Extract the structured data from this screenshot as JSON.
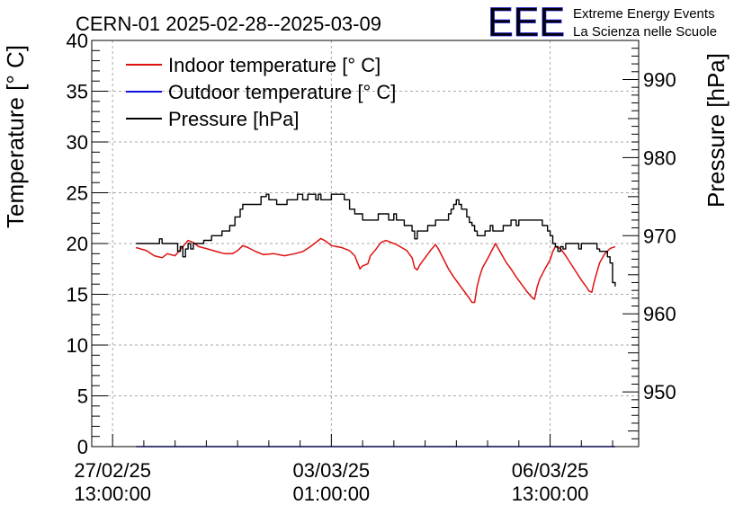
{
  "chart_data": {
    "type": "line",
    "title": "CERN-01 2025-02-28--2025-03-09",
    "branding": {
      "logo_text": "EEE",
      "line1": "Extreme Energy Events",
      "line2": "La Scienza nelle Scuole",
      "color": "#1f1fe6"
    },
    "ylabel_left": "Temperature [° C]",
    "ylabel_right": "Pressure [hPa]",
    "ylim_left": [
      0,
      40
    ],
    "ylim_right": [
      943,
      995
    ],
    "xlim_hours": [
      -8,
      202
    ],
    "left_ticks": [
      "0",
      "5",
      "10",
      "15",
      "20",
      "25",
      "30",
      "35",
      "40"
    ],
    "right_ticks": [
      "950",
      "960",
      "970",
      "980",
      "990"
    ],
    "x_ticks": [
      {
        "hour": 0,
        "date": "27/02/25",
        "time": "13:00:00"
      },
      {
        "hour": 84,
        "date": "03/03/25",
        "time": "01:00:00"
      },
      {
        "hour": 168,
        "date": "06/03/25",
        "time": "13:00:00"
      }
    ],
    "grid": true,
    "legend_position": "top-left",
    "series": [
      {
        "name": "Indoor temperature [° C]",
        "axis": "left",
        "color": "#e01010",
        "points": [
          [
            9,
            19.6
          ],
          [
            13,
            19.3
          ],
          [
            16,
            18.8
          ],
          [
            19,
            18.6
          ],
          [
            21,
            19.0
          ],
          [
            24,
            18.8
          ],
          [
            26,
            19.4
          ],
          [
            29,
            20.3
          ],
          [
            31,
            20.1
          ],
          [
            33,
            19.7
          ],
          [
            36,
            19.5
          ],
          [
            40,
            19.2
          ],
          [
            43,
            19.0
          ],
          [
            46,
            19.0
          ],
          [
            48,
            19.3
          ],
          [
            50,
            19.8
          ],
          [
            52,
            19.6
          ],
          [
            55,
            19.2
          ],
          [
            58,
            18.9
          ],
          [
            62,
            19.0
          ],
          [
            66,
            18.8
          ],
          [
            70,
            19.0
          ],
          [
            73,
            19.2
          ],
          [
            76,
            19.7
          ],
          [
            78,
            20.1
          ],
          [
            80,
            20.5
          ],
          [
            82,
            20.2
          ],
          [
            84,
            19.8
          ],
          [
            86,
            19.7
          ],
          [
            88,
            19.6
          ],
          [
            91,
            19.3
          ],
          [
            93,
            18.8
          ],
          [
            95,
            17.5
          ],
          [
            96,
            17.8
          ],
          [
            98,
            18.0
          ],
          [
            99,
            18.8
          ],
          [
            101,
            19.4
          ],
          [
            103,
            20.1
          ],
          [
            105,
            20.3
          ],
          [
            107,
            20.1
          ],
          [
            109,
            19.9
          ],
          [
            111,
            19.6
          ],
          [
            113,
            19.3
          ],
          [
            115,
            18.6
          ],
          [
            116,
            17.6
          ],
          [
            117,
            17.4
          ],
          [
            118,
            17.9
          ],
          [
            120,
            18.6
          ],
          [
            122,
            19.3
          ],
          [
            124,
            19.9
          ],
          [
            125,
            19.5
          ],
          [
            127,
            18.5
          ],
          [
            129,
            17.5
          ],
          [
            131,
            16.7
          ],
          [
            133,
            16.0
          ],
          [
            135,
            15.3
          ],
          [
            137,
            14.6
          ],
          [
            138,
            14.2
          ],
          [
            139,
            14.2
          ],
          [
            140,
            15.8
          ],
          [
            141,
            16.8
          ],
          [
            142,
            17.6
          ],
          [
            144,
            18.5
          ],
          [
            146,
            19.5
          ],
          [
            147,
            20.0
          ],
          [
            149,
            19.1
          ],
          [
            151,
            18.2
          ],
          [
            153,
            17.5
          ],
          [
            155,
            16.7
          ],
          [
            157,
            16.0
          ],
          [
            159,
            15.3
          ],
          [
            161,
            14.7
          ],
          [
            162,
            14.5
          ],
          [
            163,
            15.7
          ],
          [
            164,
            16.5
          ],
          [
            166,
            17.5
          ],
          [
            168,
            18.4
          ],
          [
            169,
            19.2
          ],
          [
            170,
            19.7
          ],
          [
            171,
            19.6
          ],
          [
            172,
            19.5
          ],
          [
            174,
            18.8
          ],
          [
            176,
            18.0
          ],
          [
            178,
            17.2
          ],
          [
            180,
            16.4
          ],
          [
            182,
            15.7
          ],
          [
            183,
            15.3
          ],
          [
            184,
            15.2
          ],
          [
            185,
            16.3
          ],
          [
            186,
            17.2
          ],
          [
            187,
            18.1
          ],
          [
            189,
            19.0
          ],
          [
            191,
            19.5
          ],
          [
            193,
            19.7
          ]
        ]
      },
      {
        "name": "Outdoor temperature [° C]",
        "axis": "left",
        "color": "#1010e0",
        "points": [
          [
            9,
            0.0
          ],
          [
            193,
            0.0
          ]
        ]
      },
      {
        "name": "Pressure [hPa]",
        "axis": "right",
        "color": "#000000",
        "points": [
          [
            9,
            969
          ],
          [
            17,
            969
          ],
          [
            18,
            969.6
          ],
          [
            19,
            969
          ],
          [
            24,
            969
          ],
          [
            25,
            968
          ],
          [
            26,
            968.6
          ],
          [
            27,
            967.3
          ],
          [
            28,
            968.3
          ],
          [
            29,
            969
          ],
          [
            30,
            968.3
          ],
          [
            31,
            969
          ],
          [
            33,
            969
          ],
          [
            35,
            969.4
          ],
          [
            38,
            970
          ],
          [
            41,
            970
          ],
          [
            42,
            970.6
          ],
          [
            44,
            970.6
          ],
          [
            45,
            971.3
          ],
          [
            47,
            972.4
          ],
          [
            49,
            973.4
          ],
          [
            50,
            974
          ],
          [
            52,
            974
          ],
          [
            56,
            974
          ],
          [
            57,
            975
          ],
          [
            59,
            975.3
          ],
          [
            60,
            974.6
          ],
          [
            62,
            974.6
          ],
          [
            63,
            974
          ],
          [
            66,
            974
          ],
          [
            67,
            974.6
          ],
          [
            70,
            974.6
          ],
          [
            71,
            975.3
          ],
          [
            73,
            974.6
          ],
          [
            75,
            975.3
          ],
          [
            77,
            975.3
          ],
          [
            78,
            974.6
          ],
          [
            79,
            975.3
          ],
          [
            80,
            974.6
          ],
          [
            83,
            974.6
          ],
          [
            84,
            975.3
          ],
          [
            88,
            975.3
          ],
          [
            89,
            974.6
          ],
          [
            91,
            973.4
          ],
          [
            93,
            972.8
          ],
          [
            95,
            972.8
          ],
          [
            96,
            972
          ],
          [
            101,
            972
          ],
          [
            102,
            972.8
          ],
          [
            104,
            972.8
          ],
          [
            106,
            972
          ],
          [
            108,
            972.8
          ],
          [
            109,
            972
          ],
          [
            111,
            972
          ],
          [
            112,
            971.3
          ],
          [
            114,
            971.3
          ],
          [
            115,
            970.6
          ],
          [
            116,
            969.6
          ],
          [
            117,
            970.6
          ],
          [
            120,
            970.6
          ],
          [
            121,
            971.3
          ],
          [
            123,
            971.3
          ],
          [
            124,
            972
          ],
          [
            128,
            972
          ],
          [
            129,
            972.8
          ],
          [
            130,
            973.4
          ],
          [
            131,
            974
          ],
          [
            132,
            974.6
          ],
          [
            133,
            974
          ],
          [
            134,
            973.4
          ],
          [
            136,
            972.4
          ],
          [
            137,
            971.7
          ],
          [
            138,
            971.3
          ],
          [
            139,
            970.6
          ],
          [
            140,
            970
          ],
          [
            141,
            970
          ],
          [
            143,
            970.6
          ],
          [
            145,
            971.3
          ],
          [
            146,
            970.6
          ],
          [
            149,
            970.6
          ],
          [
            150,
            971.3
          ],
          [
            152,
            971.3
          ],
          [
            153,
            972
          ],
          [
            155,
            971.3
          ],
          [
            156,
            972
          ],
          [
            164,
            972
          ],
          [
            165,
            971.3
          ],
          [
            167,
            970.6
          ],
          [
            168,
            970
          ],
          [
            169,
            969
          ],
          [
            170,
            968.6
          ],
          [
            171,
            968
          ],
          [
            172,
            968.6
          ],
          [
            173,
            968.3
          ],
          [
            174,
            969
          ],
          [
            176,
            969
          ],
          [
            178,
            969
          ],
          [
            179,
            968.3
          ],
          [
            180,
            969
          ],
          [
            185,
            969
          ],
          [
            186,
            968.3
          ],
          [
            187,
            968
          ],
          [
            189,
            968
          ],
          [
            190,
            967.3
          ],
          [
            191,
            966.5
          ],
          [
            192,
            964
          ],
          [
            193,
            963.5
          ]
        ]
      }
    ]
  }
}
